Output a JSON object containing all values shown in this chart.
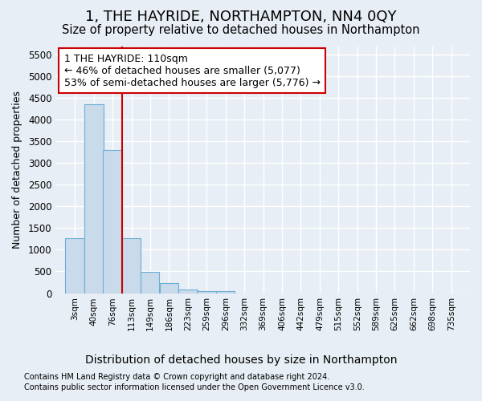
{
  "title": "1, THE HAYRIDE, NORTHAMPTON, NN4 0QY",
  "subtitle": "Size of property relative to detached houses in Northampton",
  "xlabel": "Distribution of detached houses by size in Northampton",
  "ylabel": "Number of detached properties",
  "footer1": "Contains HM Land Registry data © Crown copyright and database right 2024.",
  "footer2": "Contains public sector information licensed under the Open Government Licence v3.0.",
  "bin_edges": [
    3,
    40,
    76,
    113,
    149,
    186,
    223,
    259,
    296,
    332,
    369,
    406,
    442,
    479,
    515,
    552,
    589,
    625,
    662,
    698,
    735
  ],
  "bar_heights": [
    1270,
    4350,
    3300,
    1270,
    490,
    230,
    90,
    55,
    55,
    0,
    0,
    0,
    0,
    0,
    0,
    0,
    0,
    0,
    0,
    0
  ],
  "bar_color": "#c9daea",
  "bar_edgecolor": "#6aaed6",
  "vline_x": 113,
  "vline_color": "#cc0000",
  "ylim_max": 5700,
  "yticks": [
    0,
    500,
    1000,
    1500,
    2000,
    2500,
    3000,
    3500,
    4000,
    4500,
    5000,
    5500
  ],
  "annotation_line1": "1 THE HAYRIDE: 110sqm",
  "annotation_line2": "← 46% of detached houses are smaller (5,077)",
  "annotation_line3": "53% of semi-detached houses are larger (5,776) →",
  "annotation_box_facecolor": "#ffffff",
  "annotation_box_edgecolor": "#cc0000",
  "bg_color": "#e8eef5",
  "grid_color": "#ffffff",
  "title_fontsize": 13,
  "subtitle_fontsize": 10.5,
  "ylabel_fontsize": 9,
  "xlabel_fontsize": 10,
  "footer_fontsize": 7,
  "annot_fontsize": 9
}
